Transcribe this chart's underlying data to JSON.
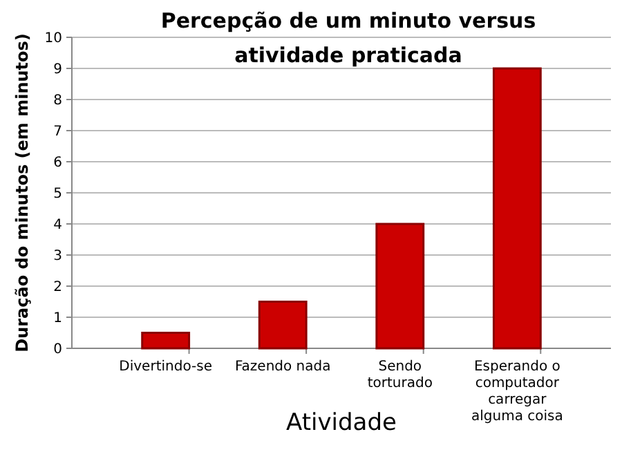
{
  "chart_data": {
    "type": "bar",
    "title": "Percepção de um minuto versus atividade praticada",
    "xlabel": "Atividade",
    "ylabel": "Duração do minutos (em minutos)",
    "categories": [
      "Divertindo-se",
      "Fazendo nada",
      "Sendo torturado",
      "Esperando o computador carregar alguma coisa"
    ],
    "values": [
      0.5,
      1.5,
      4,
      9
    ],
    "color": "#cc0000",
    "ylim": [
      0,
      10
    ],
    "yticks": [
      0,
      1,
      2,
      3,
      4,
      5,
      6,
      7,
      8,
      9,
      10
    ],
    "grid": "y"
  }
}
